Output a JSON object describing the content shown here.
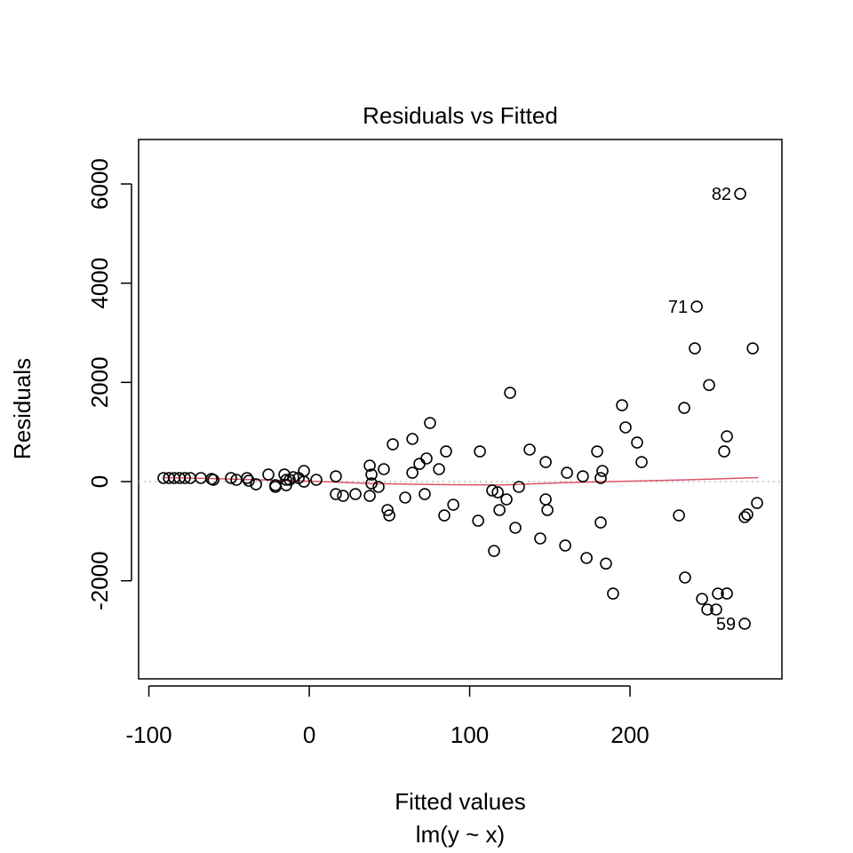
{
  "chart_data": {
    "type": "scatter",
    "title": "Residuals vs Fitted",
    "xlabel": "Fitted values",
    "subtitle": "lm(y ~ x)",
    "ylabel": "Residuals",
    "xlim": [
      -106.4,
      294.7
    ],
    "ylim": [
      -3976,
      6896
    ],
    "xticks": [
      -100,
      0,
      100,
      200
    ],
    "xtick_labels": [
      "-100",
      "0",
      "100",
      "200"
    ],
    "yticks": [
      -2000,
      0,
      2000,
      4000,
      6000
    ],
    "ytick_labels": [
      "-2000",
      "0",
      "2000",
      "4000",
      "6000"
    ],
    "grid": false,
    "reference_line": {
      "y": 0,
      "color": "#BEBEBE",
      "style": "dotted"
    },
    "smooth_color": "#DF536B",
    "smooth": [
      [
        -91,
        80
      ],
      [
        -60,
        60
      ],
      [
        0,
        10
      ],
      [
        40,
        -40
      ],
      [
        80,
        -60
      ],
      [
        120,
        -70
      ],
      [
        160,
        -20
      ],
      [
        200,
        10
      ],
      [
        240,
        40
      ],
      [
        280,
        80
      ]
    ],
    "points": [
      [
        -90.9,
        72
      ],
      [
        -87.5,
        72
      ],
      [
        -84.2,
        72
      ],
      [
        -80.9,
        72
      ],
      [
        -77.6,
        72
      ],
      [
        -74.2,
        72
      ],
      [
        -67.6,
        72
      ],
      [
        -60.9,
        54
      ],
      [
        -59.8,
        36
      ],
      [
        -48.8,
        72
      ],
      [
        -45.4,
        36
      ],
      [
        -38.8,
        72
      ],
      [
        -37.7,
        18
      ],
      [
        -33.2,
        -54
      ],
      [
        -25.5,
        143
      ],
      [
        -21.1,
        -72
      ],
      [
        -21.1,
        -107
      ],
      [
        -15.5,
        143
      ],
      [
        -14.4,
        36
      ],
      [
        -14.4,
        -72
      ],
      [
        -12.2,
        36
      ],
      [
        -10.0,
        90
      ],
      [
        -6.6,
        72
      ],
      [
        -3.3,
        215
      ],
      [
        -3.3,
        0
      ],
      [
        4.4,
        36
      ],
      [
        16.6,
        107
      ],
      [
        16.6,
        -251
      ],
      [
        21.1,
        -287
      ],
      [
        28.8,
        -251
      ],
      [
        37.7,
        -287
      ],
      [
        37.7,
        322
      ],
      [
        38.8,
        143
      ],
      [
        38.8,
        -36
      ],
      [
        43.2,
        -107
      ],
      [
        46.5,
        251
      ],
      [
        48.8,
        -573
      ],
      [
        49.9,
        -681
      ],
      [
        52.1,
        752
      ],
      [
        59.8,
        -322
      ],
      [
        64.3,
        860
      ],
      [
        64.3,
        179
      ],
      [
        68.7,
        358
      ],
      [
        73.1,
        466
      ],
      [
        72.0,
        -251
      ],
      [
        75.3,
        1182
      ],
      [
        80.9,
        251
      ],
      [
        84.2,
        -681
      ],
      [
        85.3,
        609
      ],
      [
        89.8,
        -466
      ],
      [
        106.4,
        609
      ],
      [
        105.3,
        -788
      ],
      [
        114.1,
        -179
      ],
      [
        115.2,
        -1397
      ],
      [
        117.5,
        -215
      ],
      [
        118.6,
        -573
      ],
      [
        123.0,
        -358
      ],
      [
        125.2,
        1791
      ],
      [
        128.5,
        -931
      ],
      [
        130.7,
        -107
      ],
      [
        137.4,
        645
      ],
      [
        144.0,
        -1146
      ],
      [
        147.4,
        394
      ],
      [
        147.4,
        -358
      ],
      [
        148.5,
        -573
      ],
      [
        159.6,
        -1289
      ],
      [
        160.7,
        179
      ],
      [
        170.6,
        107
      ],
      [
        172.9,
        -1540
      ],
      [
        179.5,
        609
      ],
      [
        181.7,
        72
      ],
      [
        181.7,
        -824
      ],
      [
        182.8,
        215
      ],
      [
        185.0,
        -1654
      ],
      [
        189.4,
        -2257
      ],
      [
        195.0,
        1540
      ],
      [
        197.2,
        1093
      ],
      [
        204.4,
        788
      ],
      [
        207.2,
        394
      ],
      [
        230.5,
        -681
      ],
      [
        233.8,
        1486
      ],
      [
        234.3,
        -1934
      ],
      [
        240.4,
        2686
      ],
      [
        241.6,
        3528
      ],
      [
        244.9,
        -2364
      ],
      [
        248.2,
        -2579
      ],
      [
        249.3,
        1946
      ],
      [
        253.7,
        -2579
      ],
      [
        254.8,
        -2257
      ],
      [
        258.7,
        609
      ],
      [
        260.4,
        913
      ],
      [
        260.4,
        -2256
      ],
      [
        268.7,
        5801
      ],
      [
        271.5,
        -716
      ],
      [
        273.1,
        -663
      ],
      [
        276.5,
        2686
      ],
      [
        279.2,
        -430
      ],
      [
        271.5,
        -2865
      ]
    ],
    "annotations": [
      {
        "label": "82",
        "x": 268.7,
        "y": 5801
      },
      {
        "label": "71",
        "x": 241.6,
        "y": 3528
      },
      {
        "label": "59",
        "x": 271.5,
        "y": -2865
      }
    ]
  }
}
